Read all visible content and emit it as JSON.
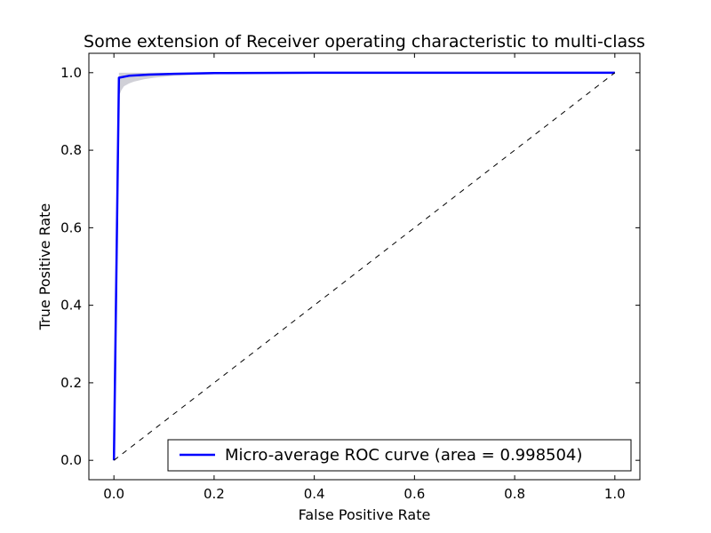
{
  "chart_data": {
    "type": "line",
    "title": "Some extension of Receiver operating characteristic to multi-class",
    "xlabel": "False Positive Rate",
    "ylabel": "True Positive Rate",
    "xlim": [
      -0.05,
      1.05
    ],
    "ylim": [
      -0.05,
      1.05
    ],
    "x_ticks": [
      0.0,
      0.2,
      0.4,
      0.6,
      0.8,
      1.0
    ],
    "y_ticks": [
      0.0,
      0.2,
      0.4,
      0.6,
      0.8,
      1.0
    ],
    "x_tick_labels": [
      "0.0",
      "0.2",
      "0.4",
      "0.6",
      "0.8",
      "1.0"
    ],
    "y_tick_labels": [
      "0.0",
      "0.2",
      "0.4",
      "0.6",
      "0.8",
      "1.0"
    ],
    "grid": false,
    "legend_position": "lower right",
    "series": [
      {
        "name": "Micro-average ROC curve (area = 0.998504)",
        "color": "#0000ff",
        "style": "solid",
        "x": [
          0.0,
          0.01,
          0.03,
          0.07,
          0.12,
          0.2,
          0.4,
          0.7,
          1.0
        ],
        "y": [
          0.0,
          0.987,
          0.992,
          0.995,
          0.997,
          0.999,
          1.0,
          1.0,
          1.0
        ],
        "band": {
          "color": "#c8c8d0",
          "x": [
            0.01,
            0.015,
            0.02,
            0.03,
            0.04,
            0.06,
            0.08,
            0.12,
            0.2,
            0.4,
            1.0
          ],
          "upper": [
            1.0,
            1.0,
            1.0,
            1.0,
            1.0,
            1.0,
            1.0,
            1.0,
            1.0,
            1.0,
            1.0
          ],
          "lower": [
            0.94,
            0.955,
            0.965,
            0.972,
            0.977,
            0.983,
            0.987,
            0.992,
            0.996,
            0.999,
            1.0
          ]
        }
      },
      {
        "name": "",
        "color": "#000000",
        "style": "dashed",
        "x": [
          0.0,
          1.0
        ],
        "y": [
          0.0,
          1.0
        ]
      }
    ]
  }
}
